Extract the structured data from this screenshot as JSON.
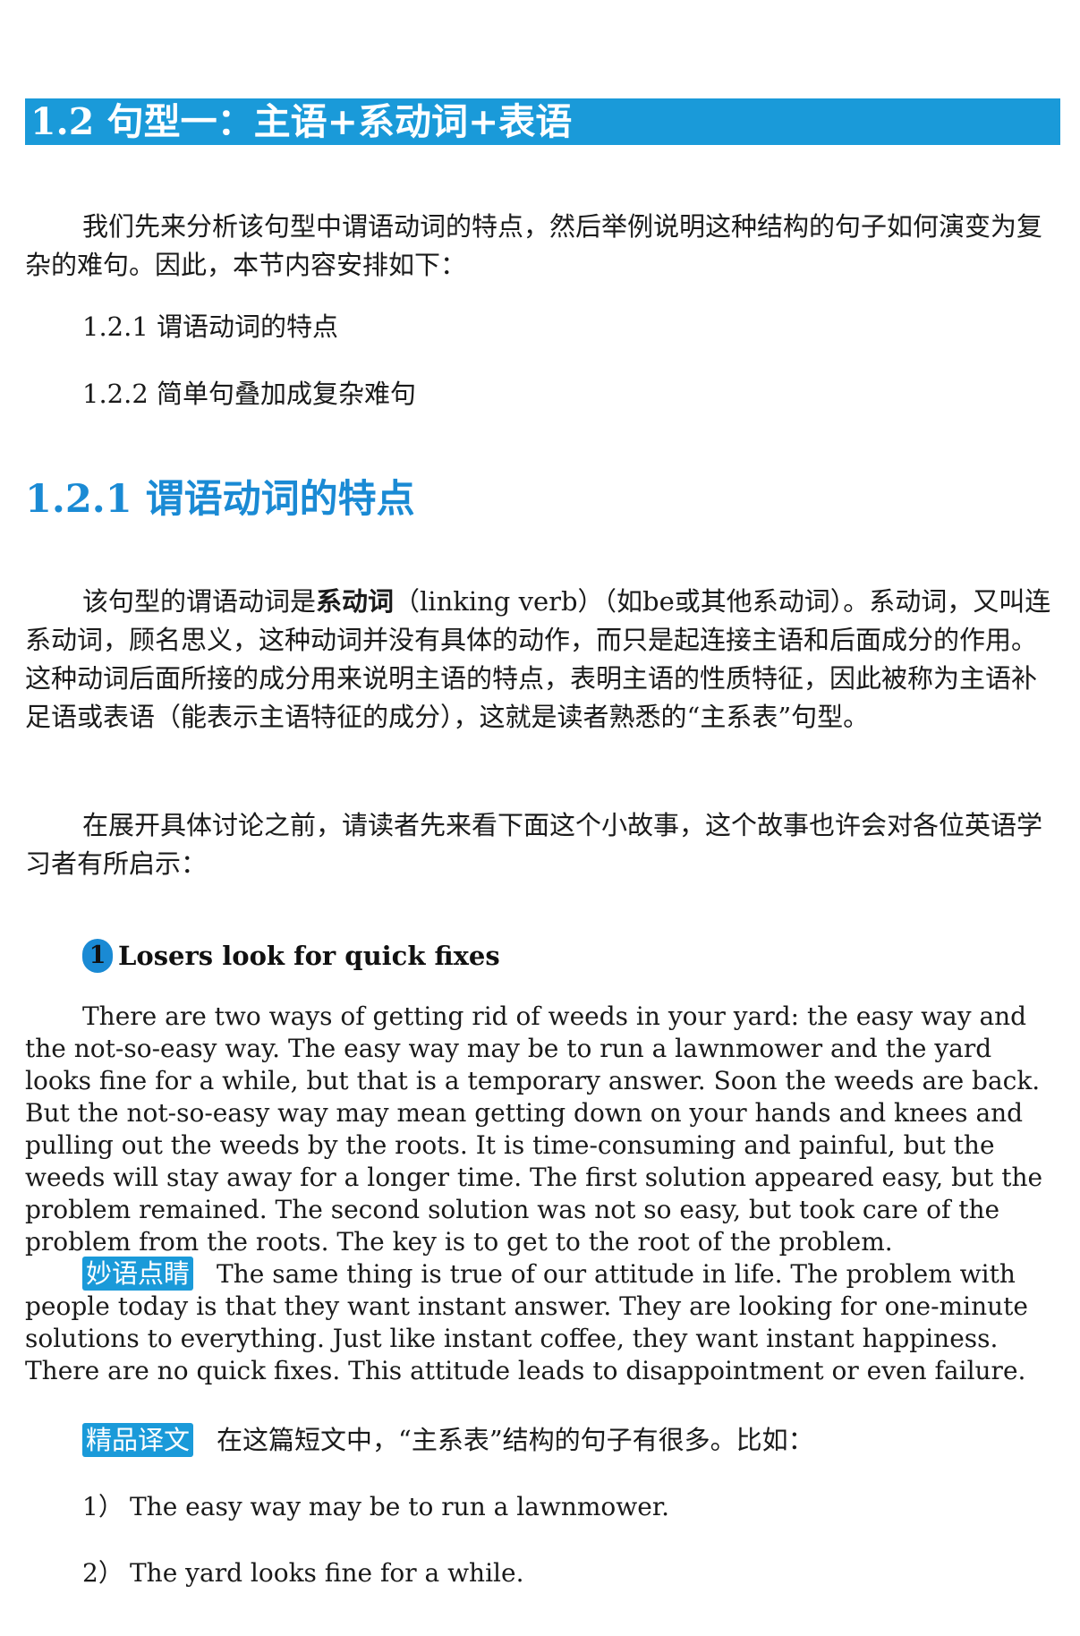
{
  "section": {
    "title": "1.2 句型一：主语+系动词+表语"
  },
  "intro": {
    "paragraph": "我们先来分析该句型中谓语动词的特点，然后举例说明这种结构的句子如何演变为复杂的难句。因此，本节内容安排如下：",
    "toc": [
      "1.2.1 谓语动词的特点",
      "1.2.2 简单句叠加成复杂难句"
    ]
  },
  "subsection": {
    "title": "1.2.1 谓语动词的特点",
    "p1_before": "该句型的谓语动词是",
    "p1_bold": "系动词",
    "p1_after": "（linking verb）（如be或其他系动词）。系动词，又叫连系动词，顾名思义，这种动词并没有具体的动作，而只是起连接主语和后面成分的作用。这种动词后面所接的成分用来说明主语的特点，表明主语的性质特征，因此被称为主语补足语或表语（能表示主语特征的成分），这就是读者熟悉的“主系表”句型。",
    "p2": "在展开具体讨论之前，请读者先来看下面这个小故事，这个故事也许会对各位英语学习者有所启示："
  },
  "story": {
    "number": "1",
    "title": "Losers look for quick fixes",
    "body": "There are two ways of getting rid of weeds in your yard: the easy way and the not-so-easy way. The easy way may be to run a lawnmower and the yard looks fine for a while, but that is a temporary answer. Soon the weeds are back. But the not-so-easy way may mean getting down on your hands and knees and pulling out the weeds by the roots. It is time-consuming and painful, but the weeds will stay away for a longer time. The first solution appeared easy, but the problem remained. The second solution was not so easy, but took care of the problem from the roots. The key is to get to the root of the problem.",
    "insight_tag": "妙语点睛",
    "insight": "The same thing is true of our attitude in life. The problem with people today is that they want instant answer. They are looking for one-minute solutions to everything. Just like instant coffee, they want instant happiness. There are no quick fixes. This attitude leads to disappointment or even failure.",
    "translation_tag": "精品译文",
    "translation": "在这篇短文中，“主系表”结构的句子有很多。比如：",
    "examples": [
      {
        "num": "1）",
        "text": "The easy way may be to run a lawnmower."
      },
      {
        "num": "2）",
        "text": "The yard looks fine for a while."
      }
    ]
  },
  "colors": {
    "accent": "#1a9ad9",
    "heading_blue": "#1a8ad4"
  }
}
